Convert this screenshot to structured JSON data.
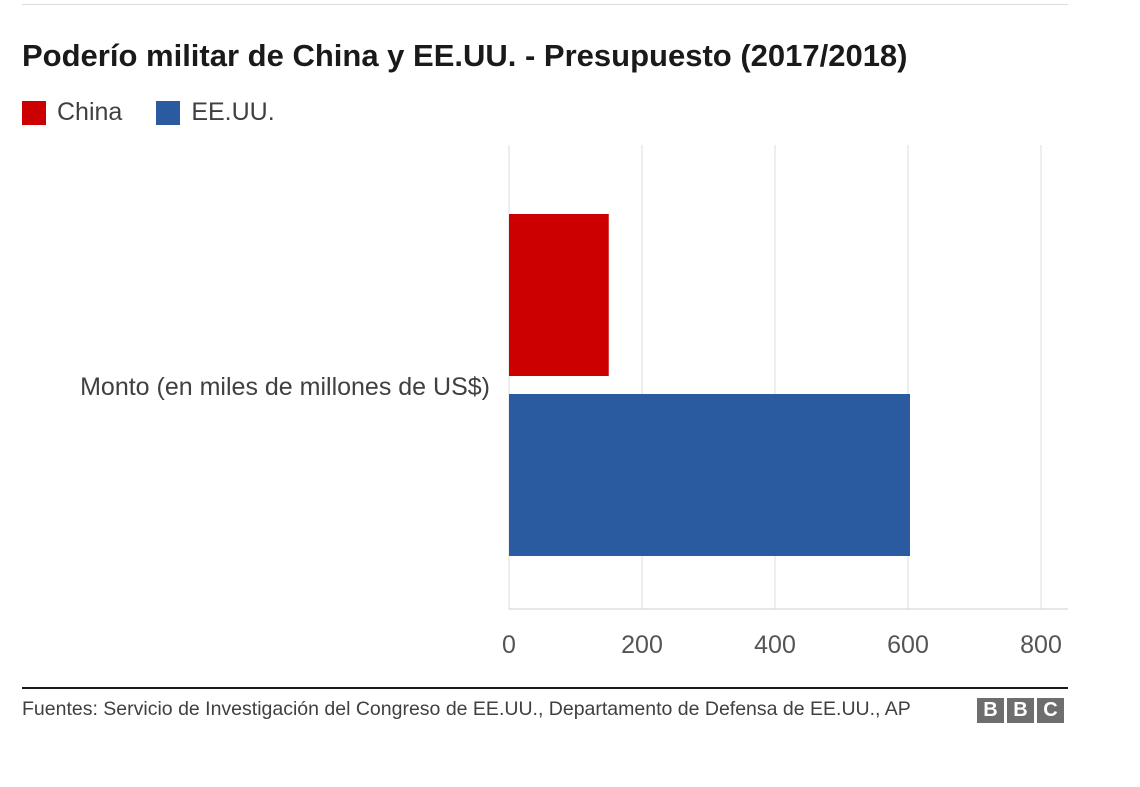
{
  "chart_data": {
    "type": "bar",
    "orientation": "horizontal",
    "title": "Poderío militar de China y EE.UU. - Presupuesto (2017/2018)",
    "categories": [
      "Monto (en miles de millones de US$)"
    ],
    "series": [
      {
        "name": "China",
        "color": "#cc0000",
        "values": [
          150
        ]
      },
      {
        "name": "EE.UU.",
        "color": "#2a5aa0",
        "values": [
          603
        ]
      }
    ],
    "xlim": [
      0,
      800
    ],
    "xticks": [
      "0",
      "200",
      "400",
      "600",
      "800"
    ],
    "grid": true,
    "legend": "top-left"
  },
  "footer": {
    "source": "Fuentes: Servicio de Investigación del Congreso de EE.UU., Departamento de Defensa de EE.UU., AP",
    "logo": [
      "B",
      "B",
      "C"
    ]
  }
}
